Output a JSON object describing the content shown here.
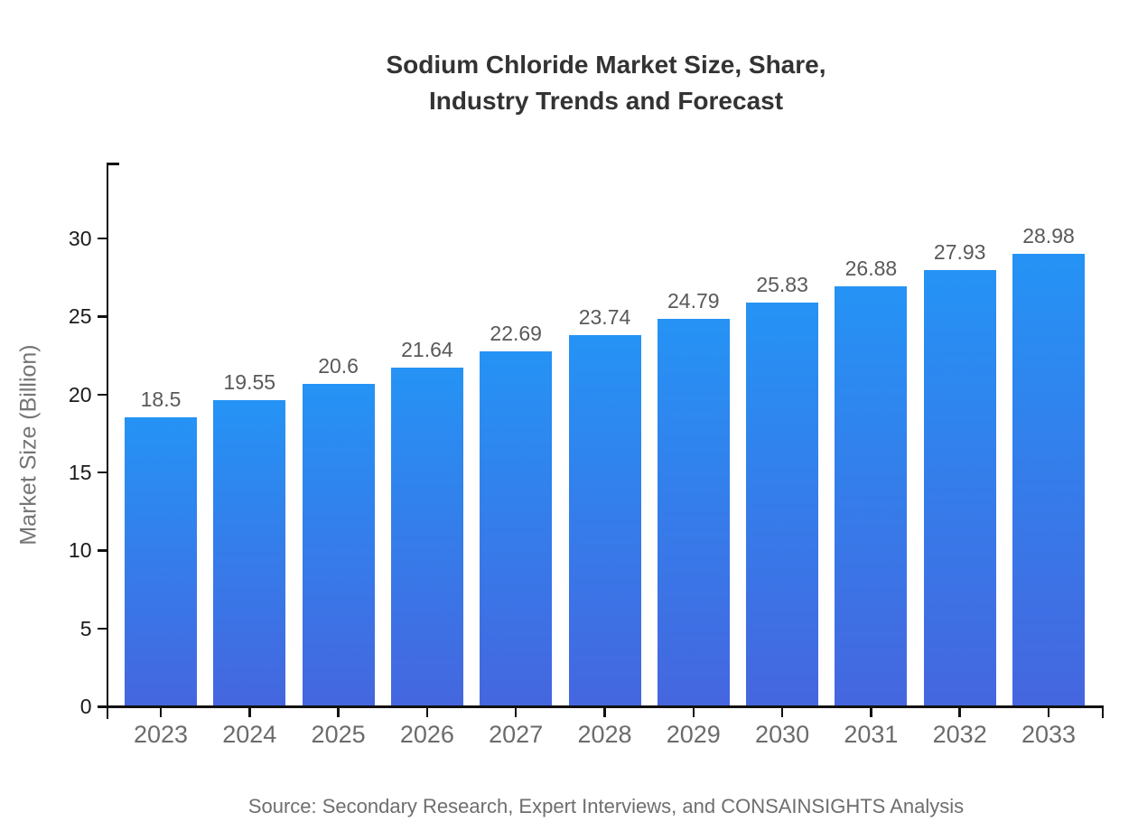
{
  "title": {
    "line1": "Sodium Chloride Market Size, Share,",
    "line2": "Industry Trends and Forecast"
  },
  "source": "Source: Secondary Research, Expert Interviews, and CONSAINSIGHTS Analysis",
  "chart_data": {
    "type": "bar",
    "title": "Sodium Chloride Market Size, Share, Industry Trends and Forecast",
    "categories": [
      "2023",
      "2024",
      "2025",
      "2026",
      "2027",
      "2028",
      "2029",
      "2030",
      "2031",
      "2032",
      "2033"
    ],
    "values": [
      18.5,
      19.55,
      20.6,
      21.64,
      22.69,
      23.74,
      24.79,
      25.83,
      26.88,
      27.93,
      28.98
    ],
    "xlabel": "",
    "ylabel": "Market Size (Billion)",
    "ylim": [
      0,
      34.8
    ],
    "yticks": [
      0,
      5,
      10,
      15,
      20,
      25,
      30
    ],
    "grid": false,
    "legend": "none",
    "value_labels_shown": true,
    "colors": {
      "bar_gradient_top": "#2593F5",
      "bar_gradient_bottom": "#4566DF",
      "axis": "#111111",
      "title_text": "#333333",
      "y_tick_text": "#1a1a1a",
      "x_tick_text": "#6b6b6b",
      "value_label_text": "#595959",
      "ylabel_text": "#757575",
      "source_text": "#6e6e6e"
    }
  }
}
